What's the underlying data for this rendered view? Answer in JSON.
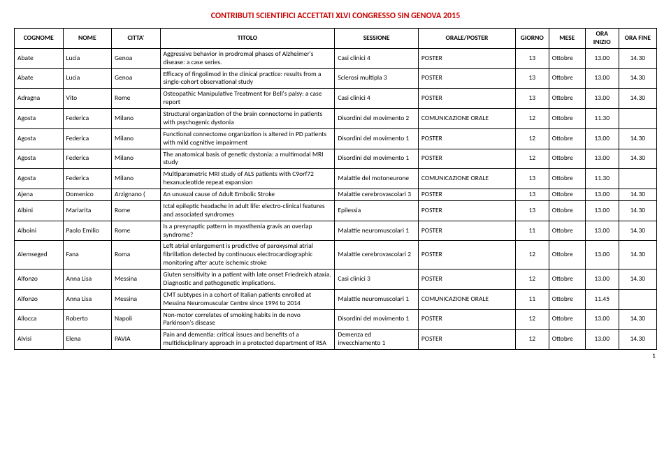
{
  "doc": {
    "title": "CONTRIBUTI SCIENTIFICI ACCETTATI XLVI CONGRESSO SIN GENOVA 2015",
    "page_number": "1",
    "title_color": "#cc0000",
    "header_font_weight": "bold"
  },
  "table": {
    "columns": [
      "COGNOME",
      "NOME",
      "CITTA'",
      "TITOLO",
      "SESSIONE",
      "ORALE/POSTER",
      "GIORNO",
      "MESE",
      "ORA INIZIO",
      "ORA FINE"
    ],
    "rows": [
      {
        "cognome": "Abate",
        "nome": "Lucia",
        "citta": "Genoa",
        "titolo": "Aggressive behavior in prodromal phases of Alzheimer's disease: a case series.",
        "sessione": "Casi clinici 4",
        "orale": "POSTER",
        "giorno": "13",
        "mese": "Ottobre",
        "inizio": "13.00",
        "fine": "14.30"
      },
      {
        "cognome": "Abate",
        "nome": "Lucia",
        "citta": "Genoa",
        "titolo": "Efficacy of fingolimod in the clinical practice: results from a single-cohort observational study",
        "sessione": "Sclerosi multipla 3",
        "orale": "POSTER",
        "giorno": "13",
        "mese": "Ottobre",
        "inizio": "13.00",
        "fine": "14.30"
      },
      {
        "cognome": "Adragna",
        "nome": "Vito",
        "citta": "Rome",
        "titolo": "Osteopathic Manipulative Treatment for Bell's palsy: a case report",
        "sessione": "Casi clinici 4",
        "orale": "POSTER",
        "giorno": "13",
        "mese": "Ottobre",
        "inizio": "13.00",
        "fine": "14.30"
      },
      {
        "cognome": "Agosta",
        "nome": "Federica",
        "citta": "Milano",
        "titolo": "Structural organization of the brain connectome in patients with psychogenic dystonia",
        "sessione": "Disordini del movimento 2",
        "orale": "COMUNICAZIONE ORALE",
        "giorno": "12",
        "mese": "Ottobre",
        "inizio": "11.30",
        "fine": ""
      },
      {
        "cognome": "Agosta",
        "nome": "Federica",
        "citta": "Milano",
        "titolo": "Functional connectome organization is altered in PD patients with mild cognitive impairment",
        "sessione": "Disordini del movimento 1",
        "orale": "POSTER",
        "giorno": "12",
        "mese": "Ottobre",
        "inizio": "13.00",
        "fine": "14.30"
      },
      {
        "cognome": "Agosta",
        "nome": "Federica",
        "citta": "Milano",
        "titolo": "The anatomical basis of genetic dystonia: a multimodal MRI study",
        "sessione": "Disordini del movimento 1",
        "orale": "POSTER",
        "giorno": "12",
        "mese": "Ottobre",
        "inizio": "13.00",
        "fine": "14.30"
      },
      {
        "cognome": "Agosta",
        "nome": "Federica",
        "citta": "Milano",
        "titolo": "Multiparametric MRI study of ALS patients with C9orf72 hexanucleotide repeat expansion",
        "sessione": "Malattie del motoneurone",
        "orale": "COMUNICAZIONE ORALE",
        "giorno": "13",
        "mese": "Ottobre",
        "inizio": "11.30",
        "fine": ""
      },
      {
        "cognome": "Ajena",
        "nome": "Domenico",
        "citta": "Arzignano (",
        "titolo": "An unusual cause of Adult Embolic Stroke",
        "sessione": "Malattie cerebrovascolari 3",
        "orale": "POSTER",
        "giorno": "13",
        "mese": "Ottobre",
        "inizio": "13.00",
        "fine": "14.30"
      },
      {
        "cognome": "Albini",
        "nome": "Mariarita",
        "citta": "Rome",
        "titolo": "Ictal epileptic headache in adult life: electro-clinical features and associated syndromes",
        "sessione": "Epilessia",
        "orale": "POSTER",
        "giorno": "13",
        "mese": "Ottobre",
        "inizio": "13.00",
        "fine": "14.30"
      },
      {
        "cognome": "Alboini",
        "nome": "Paolo Emilio",
        "citta": "Rome",
        "titolo": "Is a presynaptic pattern in myasthenia gravis an overlap syndrome?",
        "sessione": "Malattie neuromuscolari 1",
        "orale": "POSTER",
        "giorno": "11",
        "mese": "Ottobre",
        "inizio": "13.00",
        "fine": "14.30"
      },
      {
        "cognome": "Alemseged",
        "nome": "Fana",
        "citta": "Roma",
        "titolo": "Left atrial enlargement is predictive of paroxysmal atrial fibrillation detected by continuous electrocardiographic monitoring after acute ischemic stroke",
        "sessione": "Malattie cerebrovascolari 2",
        "orale": "POSTER",
        "giorno": "12",
        "mese": "Ottobre",
        "inizio": "13.00",
        "fine": "14.30"
      },
      {
        "cognome": "Alfonzo",
        "nome": "Anna Lisa",
        "citta": "Messina",
        "titolo": "Gluten sensitivity in a patient with late onset Friedreich ataxia. Diagnostic and pathogenetic implications.",
        "sessione": "Casi clinici 3",
        "orale": "POSTER",
        "giorno": "12",
        "mese": "Ottobre",
        "inizio": "13.00",
        "fine": "14.30"
      },
      {
        "cognome": "Alfonzo",
        "nome": "Anna Lisa",
        "citta": "Messina",
        "titolo": "CMT subtypes in a cohort of Italian patients enrolled at Messina Neuromuscular Centre since 1994 to 2014",
        "sessione": "Malattie neuromuscolari 1",
        "orale": "COMUNICAZIONE ORALE",
        "giorno": "11",
        "mese": "Ottobre",
        "inizio": "11.45",
        "fine": ""
      },
      {
        "cognome": "Allocca",
        "nome": "Roberto",
        "citta": "Napoli",
        "titolo": "Non-motor correlates of smoking habits in de novo Parkinson's disease",
        "sessione": "Disordini del movimento 1",
        "orale": "POSTER",
        "giorno": "12",
        "mese": "Ottobre",
        "inizio": "13.00",
        "fine": "14.30"
      },
      {
        "cognome": "Alvisi",
        "nome": "Elena",
        "citta": "PAVIA",
        "titolo": "Pain and dementia: critical issues and benefits of a multidisciplinary approach in a protected department of RSA",
        "sessione": "Demenza ed invecchiamento 1",
        "orale": "POSTER",
        "giorno": "12",
        "mese": "Ottobre",
        "inizio": "13.00",
        "fine": "14.30"
      }
    ]
  }
}
